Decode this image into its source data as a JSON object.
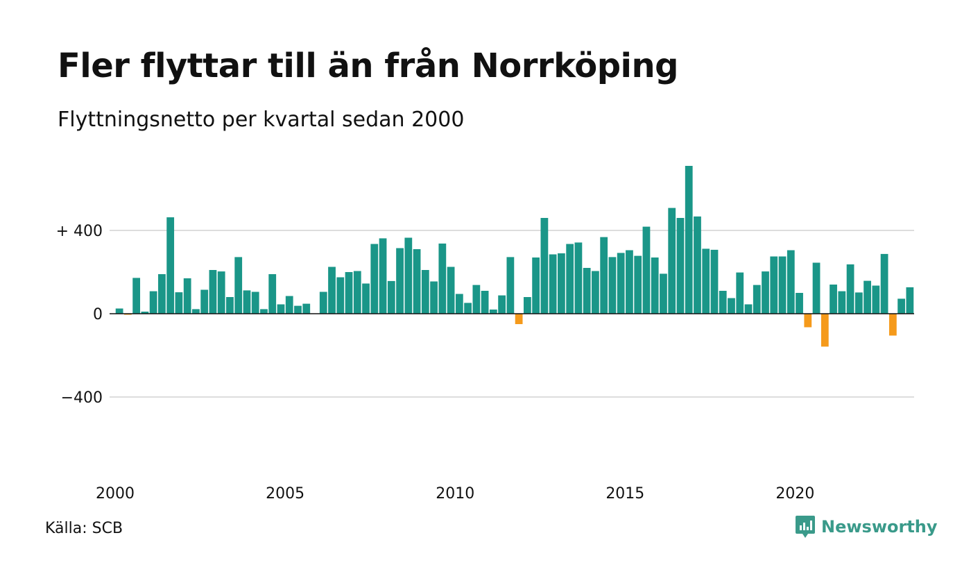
{
  "header": {
    "title": "Fler flyttar till än från Norrköping",
    "subtitle": "Flyttningsnetto per kvartal sedan 2000"
  },
  "footer": {
    "source": "Källa: SCB",
    "brand_name": "Newsworthy",
    "brand_icon": "newsworthy-logo-icon"
  },
  "colors": {
    "positive": "#1a9688",
    "negative": "#f59a1b",
    "grid": "#dddddd",
    "baseline": "#111111",
    "brand": "#3a9a8a"
  },
  "chart_data": {
    "type": "bar",
    "x_start": "2000 Q1",
    "y_tick_labels": [
      "+ 400",
      "0",
      "−400"
    ],
    "y_tick_values": [
      400,
      0,
      -400
    ],
    "x_tick_labels": [
      "2000",
      "2005",
      "2010",
      "2015",
      "2020"
    ],
    "ylim": [
      -750,
      760
    ],
    "grid": true,
    "values": [
      25,
      -5,
      172,
      10,
      108,
      190,
      463,
      103,
      170,
      22,
      115,
      210,
      203,
      80,
      272,
      112,
      105,
      22,
      190,
      45,
      85,
      38,
      48,
      0,
      105,
      225,
      175,
      200,
      205,
      145,
      335,
      362,
      157,
      315,
      365,
      310,
      210,
      155,
      337,
      225,
      95,
      52,
      138,
      110,
      20,
      88,
      272,
      -50,
      80,
      270,
      460,
      285,
      290,
      335,
      342,
      220,
      205,
      368,
      272,
      292,
      305,
      278,
      418,
      270,
      192,
      508,
      460,
      710,
      467,
      312,
      307,
      110,
      75,
      198,
      45,
      138,
      203,
      275,
      275,
      305,
      100,
      -65,
      245,
      -158,
      140,
      108,
      237,
      102,
      158,
      135,
      287,
      -105,
      72,
      127
    ]
  }
}
